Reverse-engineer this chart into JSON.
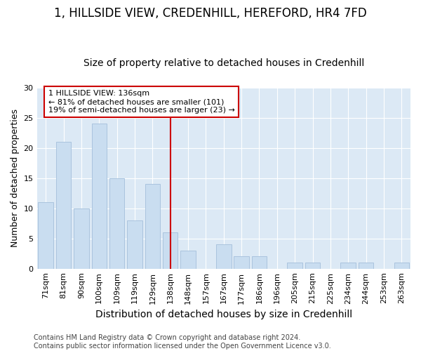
{
  "title": "1, HILLSIDE VIEW, CREDENHILL, HEREFORD, HR4 7FD",
  "subtitle": "Size of property relative to detached houses in Credenhill",
  "xlabel": "Distribution of detached houses by size in Credenhill",
  "ylabel": "Number of detached properties",
  "categories": [
    "71sqm",
    "81sqm",
    "90sqm",
    "100sqm",
    "109sqm",
    "119sqm",
    "129sqm",
    "138sqm",
    "148sqm",
    "157sqm",
    "167sqm",
    "177sqm",
    "186sqm",
    "196sqm",
    "205sqm",
    "215sqm",
    "225sqm",
    "234sqm",
    "244sqm",
    "253sqm",
    "263sqm"
  ],
  "values": [
    11,
    21,
    10,
    24,
    15,
    8,
    14,
    6,
    3,
    0,
    4,
    2,
    2,
    0,
    1,
    1,
    0,
    1,
    1,
    0,
    1
  ],
  "bar_color": "#c9ddf0",
  "bar_edge_color": "#aac4de",
  "marker_index": 7,
  "marker_line_color": "#cc0000",
  "annotation_text": "1 HILLSIDE VIEW: 136sqm\n← 81% of detached houses are smaller (101)\n19% of semi-detached houses are larger (23) →",
  "annotation_box_color": "#ffffff",
  "annotation_box_edge_color": "#cc0000",
  "ylim": [
    0,
    30
  ],
  "yticks": [
    0,
    5,
    10,
    15,
    20,
    25,
    30
  ],
  "background_color": "#dce9f5",
  "footer_text": "Contains HM Land Registry data © Crown copyright and database right 2024.\nContains public sector information licensed under the Open Government Licence v3.0.",
  "title_fontsize": 12,
  "subtitle_fontsize": 10,
  "xlabel_fontsize": 10,
  "ylabel_fontsize": 9,
  "tick_fontsize": 8,
  "annotation_fontsize": 8,
  "footer_fontsize": 7
}
